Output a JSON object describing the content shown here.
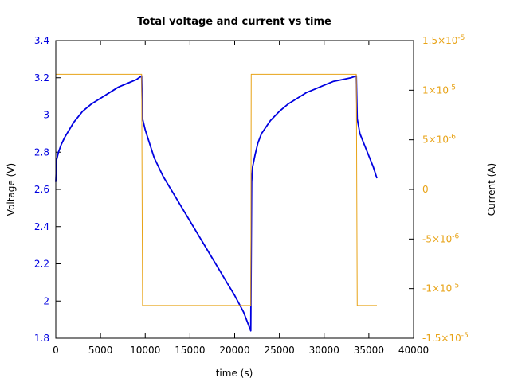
{
  "chart_data": {
    "type": "line",
    "title": "Total voltage and current vs time",
    "xlabel": "time (s)",
    "ylabel": "Voltage (V)",
    "y2label": "Current (A)",
    "xlim": [
      0,
      40000
    ],
    "ylim": [
      1.8,
      3.4
    ],
    "y2lim": [
      -1.5e-05,
      1.5e-05
    ],
    "x_ticks": [
      {
        "value": 0,
        "label": "0"
      },
      {
        "value": 5000,
        "label": "5000"
      },
      {
        "value": 10000,
        "label": "10000"
      },
      {
        "value": 15000,
        "label": "15000"
      },
      {
        "value": 20000,
        "label": "20000"
      },
      {
        "value": 25000,
        "label": "25000"
      },
      {
        "value": 30000,
        "label": "30000"
      },
      {
        "value": 35000,
        "label": "35000"
      },
      {
        "value": 40000,
        "label": "40000"
      }
    ],
    "y_ticks": [
      {
        "value": 1.8,
        "label": "1.8"
      },
      {
        "value": 2.0,
        "label": "2"
      },
      {
        "value": 2.2,
        "label": "2.2"
      },
      {
        "value": 2.4,
        "label": "2.4"
      },
      {
        "value": 2.6,
        "label": "2.6"
      },
      {
        "value": 2.8,
        "label": "2.8"
      },
      {
        "value": 3.0,
        "label": "3"
      },
      {
        "value": 3.2,
        "label": "3.2"
      },
      {
        "value": 3.4,
        "label": "3.4"
      }
    ],
    "y2_ticks": [
      {
        "value": 1.5e-05,
        "label": "1.5×10",
        "exp": "-5"
      },
      {
        "value": 1e-05,
        "label": "1×10",
        "exp": "-5"
      },
      {
        "value": 5e-06,
        "label": "5×10",
        "exp": "-6"
      },
      {
        "value": 0,
        "label": "0",
        "exp": ""
      },
      {
        "value": -5e-06,
        "label": "-5×10",
        "exp": "-6"
      },
      {
        "value": -1e-05,
        "label": "-1×10",
        "exp": "-5"
      },
      {
        "value": -1.5e-05,
        "label": "-1.5×10",
        "exp": "-5"
      }
    ],
    "grid": false,
    "colors": {
      "voltage": "#0000e0",
      "current": "#e8a317",
      "voltage_ticks": "#0000e0",
      "current_ticks": "#e8a317"
    },
    "series": [
      {
        "axis": "y",
        "x": [
          0,
          100,
          300,
          600,
          1000,
          2000,
          3000,
          4000,
          5000,
          6000,
          7000,
          8000,
          9000,
          9600,
          9700,
          10000,
          11000,
          12000,
          13000,
          14000,
          15000,
          16000,
          17000,
          18000,
          19000,
          20000,
          21000,
          21800,
          21900,
          22000,
          22300,
          22600,
          23000,
          24000,
          25000,
          26000,
          27000,
          28000,
          29000,
          30000,
          31000,
          32000,
          33000,
          33600,
          33700,
          34000,
          34500,
          35000,
          35500,
          35900
        ],
        "values": [
          2.64,
          2.76,
          2.8,
          2.84,
          2.88,
          2.96,
          3.02,
          3.06,
          3.09,
          3.12,
          3.15,
          3.17,
          3.19,
          3.21,
          2.98,
          2.92,
          2.77,
          2.67,
          2.59,
          2.51,
          2.43,
          2.35,
          2.27,
          2.19,
          2.11,
          2.03,
          1.94,
          1.84,
          2.64,
          2.72,
          2.79,
          2.85,
          2.9,
          2.97,
          3.02,
          3.06,
          3.09,
          3.12,
          3.14,
          3.16,
          3.18,
          3.19,
          3.2,
          3.21,
          2.98,
          2.9,
          2.84,
          2.78,
          2.72,
          2.66
        ]
      },
      {
        "axis": "y2",
        "x": [
          0,
          9600,
          9700,
          21800,
          21850,
          33600,
          33700,
          35900
        ],
        "values": [
          1.16e-05,
          1.16e-05,
          -1.17e-05,
          -1.17e-05,
          1.16e-05,
          1.16e-05,
          -1.17e-05,
          -1.17e-05
        ]
      }
    ]
  }
}
